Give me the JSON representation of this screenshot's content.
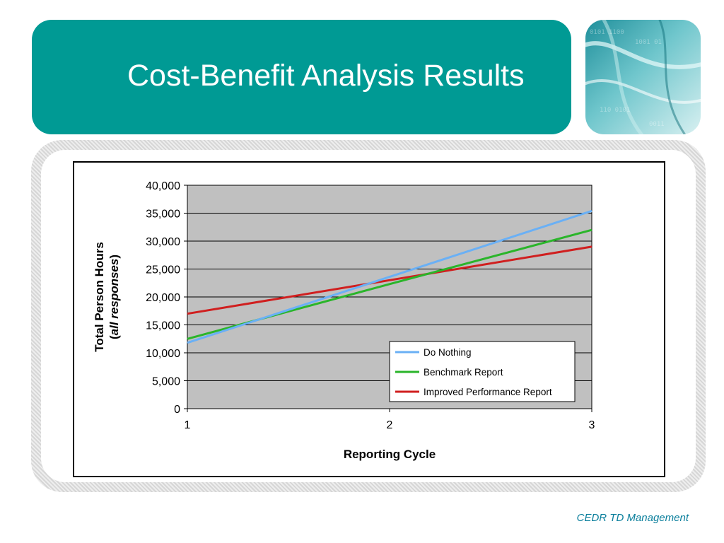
{
  "slide": {
    "title": "Cost-Benefit Analysis Results",
    "footer": "CEDR TD Management",
    "accent_color": "#009a94",
    "footer_color": "#0b7f9c"
  },
  "chart_data": {
    "type": "line",
    "x": [
      1,
      2,
      3
    ],
    "xticks": [
      "1",
      "2",
      "3"
    ],
    "yticks": [
      "0",
      "5,000",
      "10,000",
      "15,000",
      "20,000",
      "25,000",
      "30,000",
      "35,000",
      "40,000"
    ],
    "ylim": [
      0,
      40000
    ],
    "xlabel": "Reporting Cycle",
    "ylabel_line1": "Total Person Hours",
    "ylabel_line2_open": "(",
    "ylabel_line2_italic": "all responses",
    "ylabel_line2_close": ")",
    "grid": true,
    "plot_background": "#c0c0c0",
    "legend_position": "bottom-right",
    "series": [
      {
        "name": "Do Nothing",
        "color": "#6ab0f5",
        "values": [
          11800,
          23600,
          35400
        ]
      },
      {
        "name": "Benchmark Report",
        "color": "#2ab52a",
        "values": [
          12500,
          22300,
          32000
        ]
      },
      {
        "name": "Improved Performance Report",
        "color": "#d01f1f",
        "values": [
          17000,
          23000,
          29000
        ]
      }
    ]
  }
}
